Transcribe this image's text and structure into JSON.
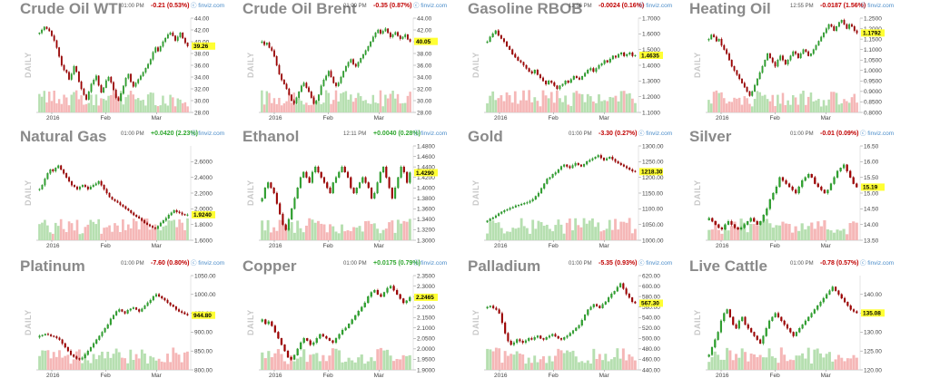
{
  "chart_data": [
    {
      "type": "candlestick",
      "title": "Crude Oil WTI",
      "time": "01:00 PM",
      "change": "-0.21 (0.53%)",
      "direction": "down",
      "last": "39.26",
      "yticks": [
        "44.00",
        "42.00",
        "40.00",
        "38.00",
        "36.00",
        "34.00",
        "32.00",
        "30.00",
        "28.00"
      ],
      "ylim": [
        28,
        44
      ],
      "xticks": [
        "2016",
        "Feb",
        "Mar"
      ],
      "yaxis_label": "DAILY",
      "brand": "finviz.com",
      "closes": [
        41.5,
        42.0,
        42.5,
        42.2,
        41.8,
        41.0,
        40.2,
        39.0,
        37.5,
        36.0,
        35.2,
        34.8,
        33.6,
        34.5,
        35.8,
        34.9,
        33.2,
        32.0,
        31.0,
        30.2,
        31.5,
        32.8,
        33.5,
        34.2,
        32.6,
        31.4,
        32.2,
        33.4,
        34.0,
        33.1,
        31.8,
        30.5,
        30.0,
        31.2,
        32.5,
        33.8,
        34.5,
        33.2,
        32.4,
        33.0,
        33.6,
        34.2,
        34.8,
        35.5,
        36.2,
        37.0,
        38.2,
        39.0,
        38.4,
        39.2,
        40.0,
        40.6,
        41.2,
        41.5,
        41.0,
        40.2,
        40.8,
        41.5,
        40.6,
        39.8,
        39.26
      ]
    },
    {
      "type": "candlestick",
      "title": "Crude Oil Brent",
      "time": "01:00 PM",
      "change": "-0.35 (0.87%)",
      "direction": "down",
      "last": "40.05",
      "yticks": [
        "44.00",
        "42.00",
        "40.00",
        "38.00",
        "36.00",
        "34.00",
        "32.00",
        "30.00",
        "28.00"
      ],
      "ylim": [
        28,
        44
      ],
      "xticks": [
        "2016",
        "Feb",
        "Mar"
      ],
      "yaxis_label": "DAILY",
      "brand": "finviz.com",
      "closes": [
        40.0,
        39.5,
        39.8,
        39.0,
        38.5,
        37.5,
        36.0,
        34.5,
        33.5,
        32.8,
        32.0,
        31.0,
        30.0,
        29.5,
        30.5,
        31.5,
        32.5,
        33.0,
        32.2,
        31.5,
        30.5,
        29.5,
        30.0,
        31.0,
        32.5,
        33.5,
        34.2,
        35.0,
        34.0,
        33.0,
        32.5,
        33.0,
        34.0,
        35.0,
        35.8,
        36.5,
        37.0,
        36.2,
        35.8,
        36.5,
        37.2,
        37.8,
        38.5,
        39.2,
        40.0,
        40.8,
        41.5,
        42.0,
        41.4,
        41.8,
        42.2,
        41.5,
        40.8,
        41.2,
        41.6,
        41.0,
        40.5,
        40.8,
        41.2,
        40.4,
        40.05
      ]
    },
    {
      "type": "candlestick",
      "title": "Gasoline RBOB",
      "time": "12:56 PM",
      "change": "-0.0024 (0.16%)",
      "direction": "down",
      "last": "1.4635",
      "yticks": [
        "1.7000",
        "1.6000",
        "1.5000",
        "1.4000",
        "1.3000",
        "1.2000",
        "1.1000"
      ],
      "ylim": [
        1.1,
        1.7
      ],
      "xticks": [
        "2016",
        "Feb",
        "Mar"
      ],
      "yaxis_label": "DAILY",
      "brand": "finviz.com",
      "closes": [
        1.55,
        1.58,
        1.6,
        1.62,
        1.59,
        1.57,
        1.55,
        1.52,
        1.5,
        1.47,
        1.45,
        1.43,
        1.42,
        1.4,
        1.38,
        1.36,
        1.35,
        1.37,
        1.34,
        1.32,
        1.3,
        1.28,
        1.3,
        1.29,
        1.27,
        1.25,
        1.27,
        1.28,
        1.3,
        1.29,
        1.31,
        1.33,
        1.32,
        1.31,
        1.33,
        1.35,
        1.37,
        1.38,
        1.36,
        1.38,
        1.4,
        1.41,
        1.43,
        1.42,
        1.44,
        1.46,
        1.45,
        1.47,
        1.48,
        1.46,
        1.47,
        1.48,
        1.46,
        1.4635
      ]
    },
    {
      "type": "candlestick",
      "title": "Heating Oil",
      "time": "12:55 PM",
      "change": "-0.0187 (1.56%)",
      "direction": "down",
      "last": "1.1792",
      "yticks": [
        "1.2500",
        "1.2000",
        "1.1500",
        "1.1000",
        "1.0500",
        "1.0000",
        "0.9500",
        "0.9000",
        "0.8500",
        "0.8000"
      ],
      "ylim": [
        0.8,
        1.25
      ],
      "xticks": [
        "2016",
        "Feb",
        "Mar"
      ],
      "yaxis_label": "DAILY",
      "brand": "finviz.com",
      "closes": [
        1.15,
        1.17,
        1.16,
        1.14,
        1.15,
        1.12,
        1.1,
        1.08,
        1.05,
        1.02,
        1.0,
        0.98,
        0.96,
        0.94,
        0.92,
        0.9,
        0.88,
        0.9,
        0.93,
        0.96,
        0.99,
        1.02,
        1.05,
        1.08,
        1.06,
        1.04,
        1.02,
        1.05,
        1.07,
        1.05,
        1.03,
        1.05,
        1.07,
        1.09,
        1.08,
        1.06,
        1.08,
        1.1,
        1.09,
        1.07,
        1.08,
        1.1,
        1.12,
        1.14,
        1.16,
        1.18,
        1.2,
        1.22,
        1.21,
        1.19,
        1.21,
        1.23,
        1.24,
        1.22,
        1.2,
        1.22,
        1.21,
        1.19,
        1.1792
      ]
    },
    {
      "type": "candlestick",
      "title": "Natural Gas",
      "time": "01:00 PM",
      "change": "+0.0420 (2.23%)",
      "direction": "up",
      "last": "1.9240",
      "yticks": [
        "2.6000",
        "2.4000",
        "2.2000",
        "2.0000",
        "1.8000",
        "1.6000"
      ],
      "ylim": [
        1.6,
        2.8
      ],
      "xticks": [
        "2016",
        "Feb",
        "Mar"
      ],
      "yaxis_label": "DAILY",
      "brand": "finviz.com",
      "closes": [
        2.25,
        2.3,
        2.38,
        2.45,
        2.5,
        2.48,
        2.52,
        2.55,
        2.5,
        2.45,
        2.4,
        2.35,
        2.3,
        2.28,
        2.25,
        2.28,
        2.3,
        2.28,
        2.25,
        2.28,
        2.3,
        2.32,
        2.35,
        2.3,
        2.25,
        2.2,
        2.15,
        2.12,
        2.1,
        2.08,
        2.05,
        2.03,
        2.0,
        1.98,
        1.95,
        1.92,
        1.9,
        1.88,
        1.85,
        1.82,
        1.8,
        1.78,
        1.76,
        1.75,
        1.78,
        1.82,
        1.85,
        1.88,
        1.92,
        1.95,
        1.98,
        1.96,
        1.95,
        1.93,
        1.92,
        1.924
      ]
    },
    {
      "type": "candlestick",
      "title": "Ethanol",
      "time": "12:11 PM",
      "change": "+0.0040 (0.28%)",
      "direction": "up",
      "last": "1.4290",
      "yticks": [
        "1.4800",
        "1.4600",
        "1.4400",
        "1.4200",
        "1.4000",
        "1.3800",
        "1.3600",
        "1.3400",
        "1.3200",
        "1.3000"
      ],
      "ylim": [
        1.3,
        1.48
      ],
      "xticks": [
        "2016",
        "Feb",
        "Mar"
      ],
      "yaxis_label": "DAILY",
      "brand": "finviz.com",
      "closes": [
        1.38,
        1.4,
        1.41,
        1.4,
        1.39,
        1.37,
        1.35,
        1.33,
        1.32,
        1.34,
        1.36,
        1.38,
        1.4,
        1.42,
        1.43,
        1.42,
        1.41,
        1.43,
        1.44,
        1.43,
        1.42,
        1.41,
        1.4,
        1.39,
        1.41,
        1.42,
        1.43,
        1.44,
        1.43,
        1.42,
        1.4,
        1.39,
        1.4,
        1.41,
        1.42,
        1.41,
        1.4,
        1.38,
        1.39,
        1.41,
        1.43,
        1.44,
        1.42,
        1.4,
        1.38,
        1.4,
        1.42,
        1.44,
        1.43,
        1.41,
        1.429
      ]
    },
    {
      "type": "candlestick",
      "title": "Gold",
      "time": "01:00 PM",
      "change": "-3.30 (0.27%)",
      "direction": "down",
      "last": "1218.30",
      "yticks": [
        "1300.00",
        "1250.00",
        "1200.00",
        "1150.00",
        "1100.00",
        "1050.00",
        "1000.00"
      ],
      "ylim": [
        1000,
        1300
      ],
      "xticks": [
        "2016",
        "Feb",
        "Mar"
      ],
      "yaxis_label": "DAILY",
      "brand": "finviz.com",
      "closes": [
        1062,
        1068,
        1072,
        1078,
        1085,
        1090,
        1095,
        1098,
        1102,
        1105,
        1110,
        1112,
        1115,
        1118,
        1120,
        1125,
        1130,
        1140,
        1150,
        1165,
        1180,
        1195,
        1200,
        1210,
        1215,
        1225,
        1235,
        1240,
        1235,
        1230,
        1238,
        1245,
        1240,
        1235,
        1242,
        1250,
        1255,
        1260,
        1265,
        1270,
        1262,
        1255,
        1260,
        1265,
        1258,
        1250,
        1245,
        1240,
        1235,
        1230,
        1225,
        1220,
        1218.3
      ]
    },
    {
      "type": "candlestick",
      "title": "Silver",
      "time": "01:00 PM",
      "change": "-0.01 (0.09%)",
      "direction": "down",
      "last": "15.19",
      "yticks": [
        "16.50",
        "16.00",
        "15.50",
        "15.00",
        "14.50",
        "14.00",
        "13.50"
      ],
      "ylim": [
        13.5,
        16.5
      ],
      "xticks": [
        "2016",
        "Feb",
        "Mar"
      ],
      "yaxis_label": "DAILY",
      "brand": "finviz.com",
      "closes": [
        14.2,
        14.1,
        14.0,
        13.9,
        13.85,
        14.0,
        14.1,
        14.0,
        13.9,
        13.85,
        13.9,
        14.0,
        14.1,
        14.2,
        14.1,
        14.0,
        14.1,
        14.3,
        14.5,
        14.8,
        15.0,
        15.2,
        15.5,
        15.4,
        15.3,
        15.2,
        15.1,
        15.0,
        15.2,
        15.4,
        15.5,
        15.6,
        15.5,
        15.3,
        15.2,
        15.1,
        15.0,
        15.1,
        15.3,
        15.5,
        15.7,
        15.8,
        15.9,
        15.7,
        15.5,
        15.3,
        15.19
      ]
    },
    {
      "type": "candlestick",
      "title": "Platinum",
      "time": "01:00 PM",
      "change": "-7.60 (0.80%)",
      "direction": "down",
      "last": "944.80",
      "yticks": [
        "1050.00",
        "1000.00",
        "950.00",
        "900.00",
        "850.00",
        "800.00"
      ],
      "ylim": [
        800,
        1050
      ],
      "xticks": [
        "2016",
        "Feb",
        "Mar"
      ],
      "yaxis_label": "DAILY",
      "brand": "finviz.com",
      "closes": [
        890,
        892,
        895,
        893,
        890,
        888,
        885,
        880,
        870,
        860,
        850,
        840,
        835,
        830,
        828,
        832,
        840,
        850,
        860,
        870,
        880,
        890,
        900,
        910,
        920,
        935,
        945,
        955,
        960,
        955,
        950,
        958,
        962,
        965,
        960,
        955,
        962,
        970,
        978,
        985,
        995,
        1000,
        995,
        990,
        985,
        978,
        972,
        968,
        960,
        955,
        952,
        948,
        944.8
      ]
    },
    {
      "type": "candlestick",
      "title": "Copper",
      "time": "01:00 PM",
      "change": "+0.0175 (0.79%)",
      "direction": "up",
      "last": "2.2465",
      "yticks": [
        "2.3500",
        "2.3000",
        "2.2500",
        "2.2000",
        "2.1500",
        "2.1000",
        "2.0500",
        "2.0000",
        "1.9500",
        "1.9000"
      ],
      "ylim": [
        1.9,
        2.35
      ],
      "xticks": [
        "2016",
        "Feb",
        "Mar"
      ],
      "yaxis_label": "DAILY",
      "brand": "finviz.com",
      "closes": [
        2.14,
        2.12,
        2.13,
        2.11,
        2.08,
        2.05,
        2.02,
        1.99,
        1.96,
        1.95,
        1.97,
        2.0,
        2.03,
        2.05,
        2.04,
        2.02,
        2.03,
        2.05,
        2.07,
        2.06,
        2.05,
        2.04,
        2.03,
        2.05,
        2.07,
        2.09,
        2.1,
        2.12,
        2.14,
        2.16,
        2.18,
        2.2,
        2.22,
        2.25,
        2.27,
        2.28,
        2.26,
        2.25,
        2.27,
        2.29,
        2.3,
        2.28,
        2.26,
        2.24,
        2.22,
        2.23,
        2.2465
      ]
    },
    {
      "type": "candlestick",
      "title": "Palladium",
      "time": "01:00 PM",
      "change": "-5.35 (0.93%)",
      "direction": "down",
      "last": "567.30",
      "yticks": [
        "620.00",
        "600.00",
        "580.00",
        "560.00",
        "540.00",
        "520.00",
        "500.00",
        "480.00",
        "460.00",
        "440.00"
      ],
      "ylim": [
        440,
        620
      ],
      "xticks": [
        "2016",
        "Feb",
        "Mar"
      ],
      "yaxis_label": "DAILY",
      "brand": "finviz.com",
      "closes": [
        560,
        562,
        558,
        555,
        548,
        530,
        510,
        495,
        488,
        492,
        498,
        495,
        492,
        496,
        500,
        498,
        502,
        505,
        500,
        498,
        502,
        505,
        508,
        504,
        500,
        498,
        502,
        505,
        510,
        515,
        520,
        525,
        535,
        545,
        555,
        560,
        565,
        562,
        558,
        565,
        570,
        578,
        585,
        590,
        598,
        605,
        595,
        585,
        578,
        570,
        567.3
      ]
    },
    {
      "type": "candlestick",
      "title": "Live Cattle",
      "time": "01:00 PM",
      "change": "-0.78 (0.57%)",
      "direction": "down",
      "last": "135.08",
      "yticks": [
        "140.00",
        "135.00",
        "130.00",
        "125.00",
        "120.00"
      ],
      "ylim": [
        120,
        145
      ],
      "xticks": [
        "2016",
        "Feb",
        "Mar"
      ],
      "yaxis_label": "DAILY",
      "brand": "finviz.com",
      "closes": [
        124,
        126,
        128,
        130,
        133,
        135,
        136,
        134,
        132,
        131,
        133,
        134,
        132,
        131,
        130,
        129,
        128,
        127,
        129,
        131,
        133,
        134,
        135,
        134,
        133,
        132,
        131,
        130,
        129,
        130,
        131,
        132,
        133,
        134,
        135,
        136,
        137,
        138,
        139,
        140,
        141,
        142,
        141,
        140,
        139,
        138,
        137,
        136,
        135.5,
        135.08
      ]
    }
  ]
}
